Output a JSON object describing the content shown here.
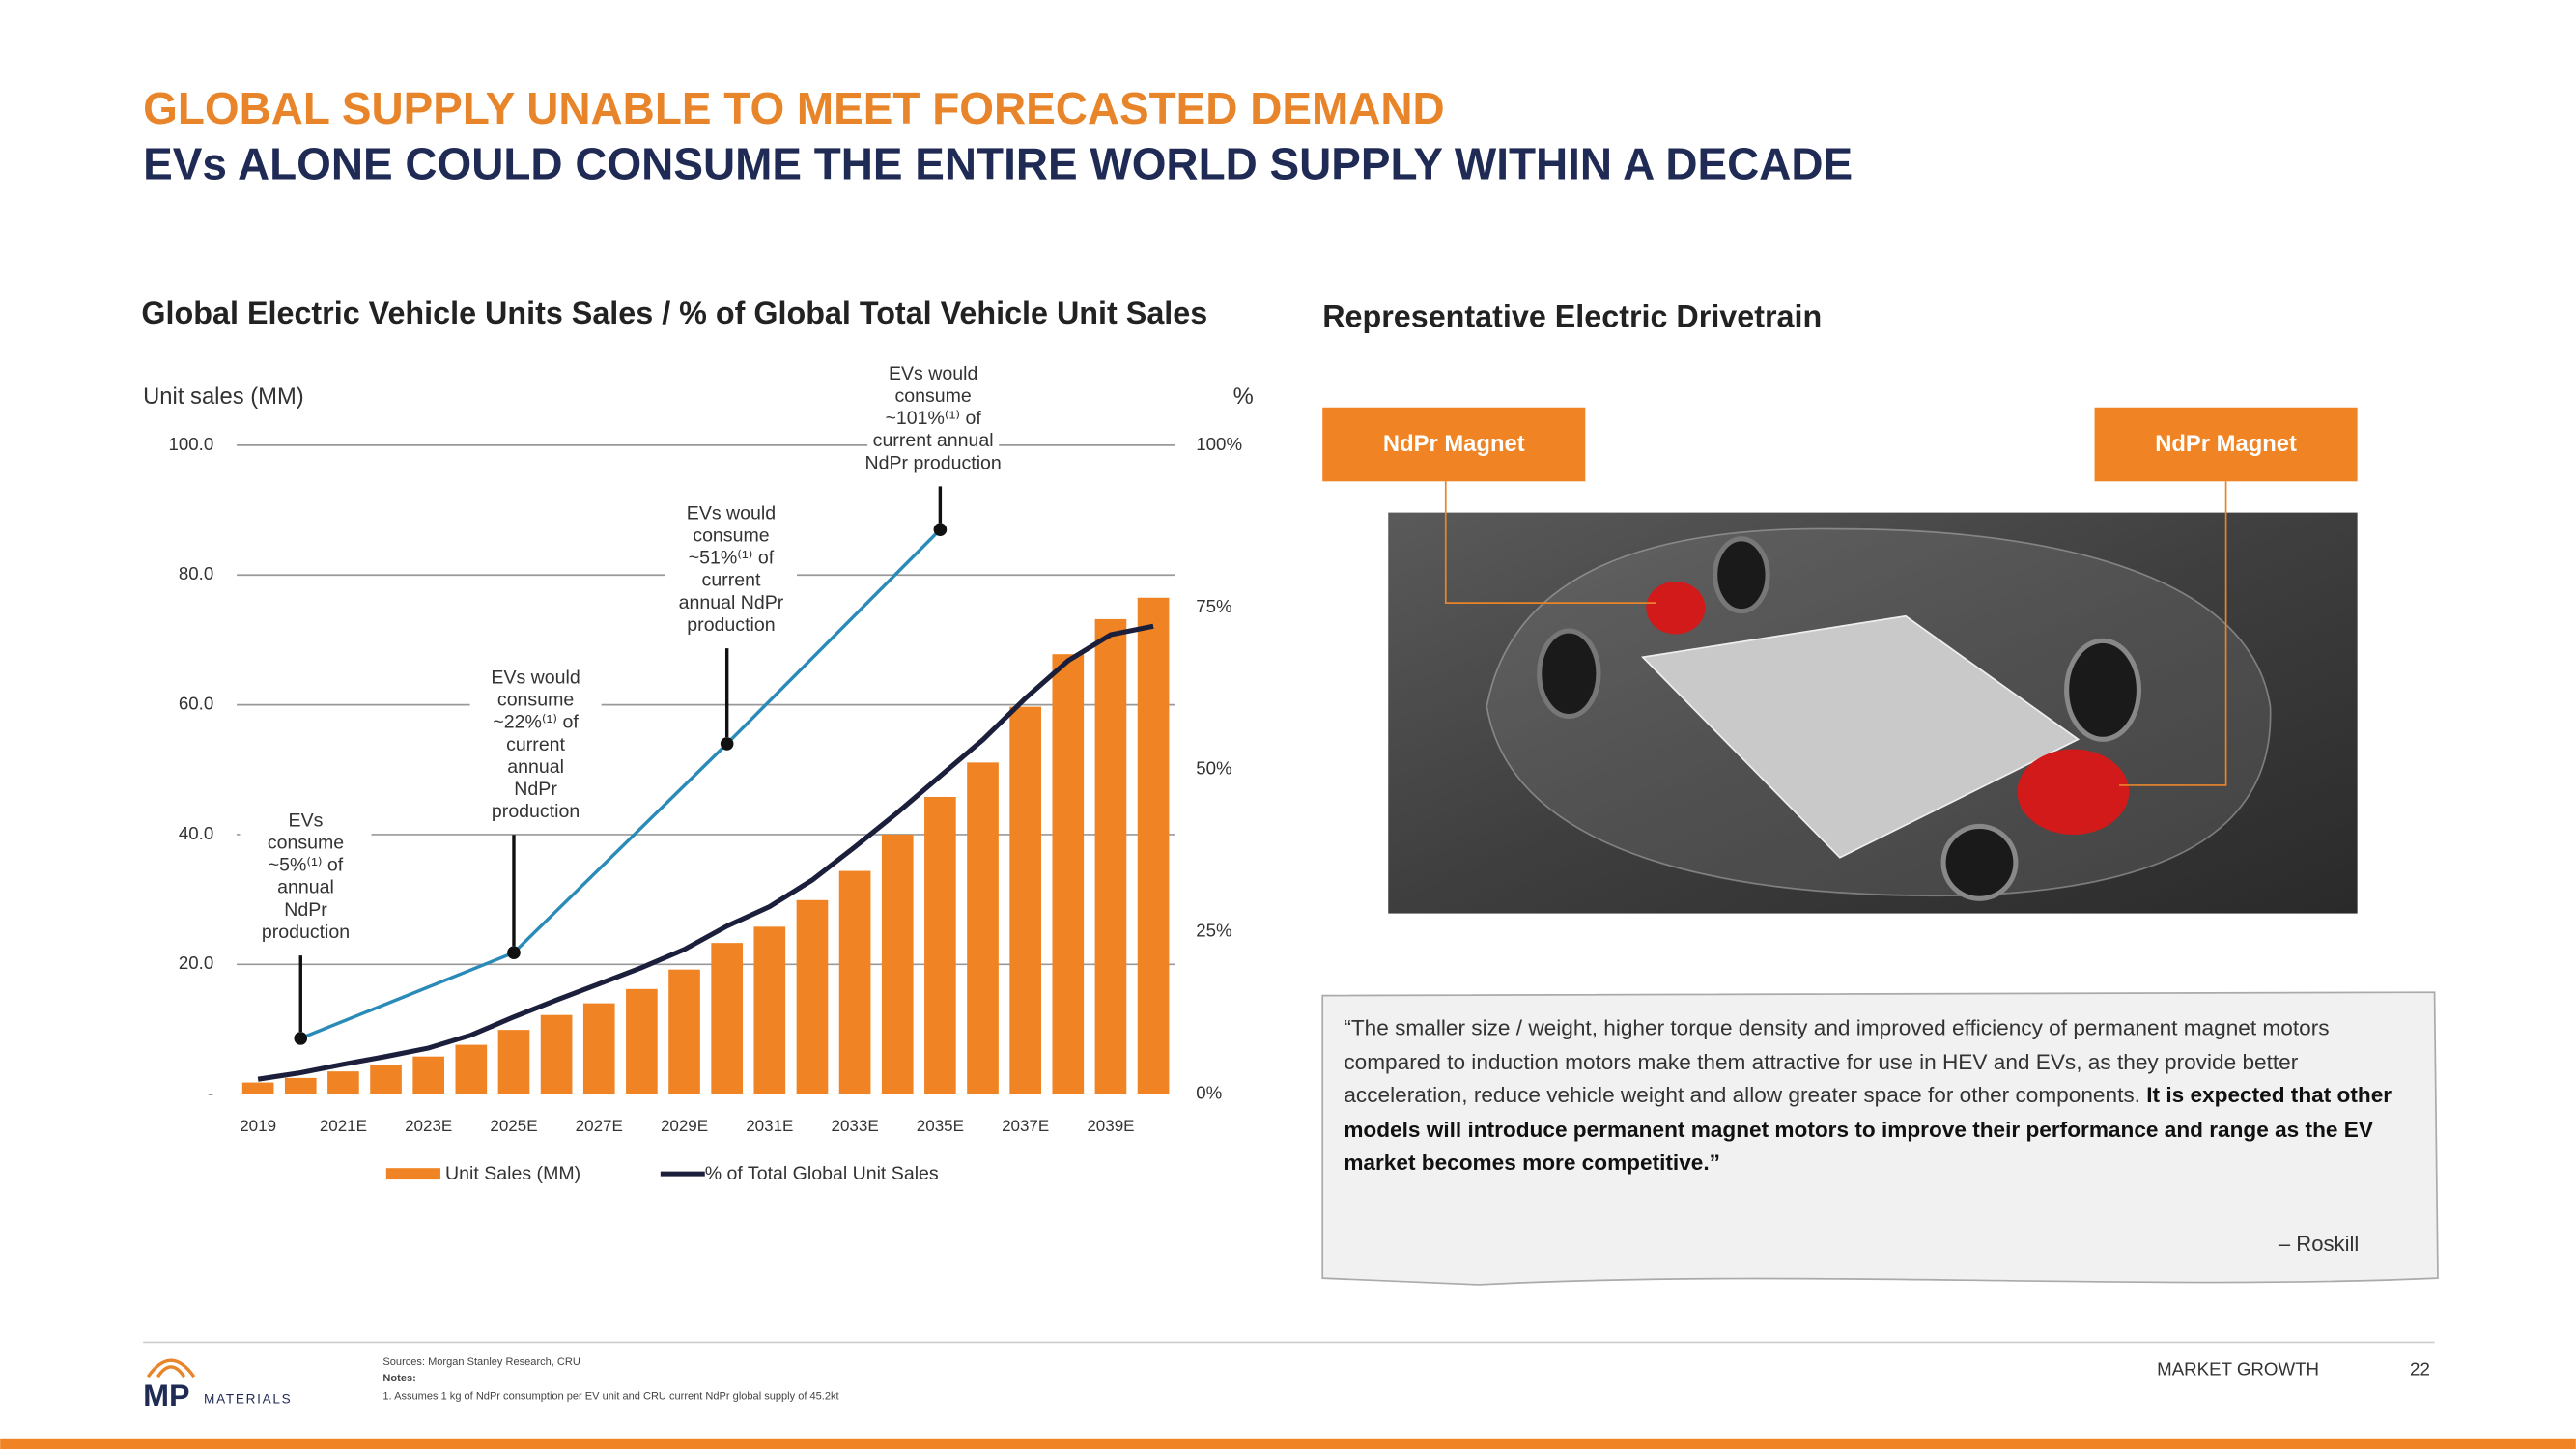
{
  "header": {
    "title": "GLOBAL SUPPLY UNABLE TO MEET FORECASTED DEMAND",
    "subtitle": "EVs ALONE COULD CONSUME THE ENTIRE WORLD SUPPLY WITHIN A DECADE"
  },
  "chart_data": {
    "type": "bar",
    "title": "Global Electric Vehicle Units Sales / % of Global Total Vehicle Unit Sales",
    "y_label": "Unit sales (MM)",
    "y2_label": "%",
    "categories": [
      "2019",
      null,
      "2021E",
      null,
      "2023E",
      null,
      "2025E",
      null,
      "2027E",
      null,
      "2029E",
      null,
      "2031E",
      null,
      "2033E",
      null,
      "2035E",
      null,
      "2037E",
      null,
      "2039E",
      null
    ],
    "series": [
      {
        "name": "Unit Sales (MM)",
        "color": "#f08424",
        "values": [
          1.8,
          2.5,
          3.5,
          4.5,
          5.8,
          7.6,
          9.9,
          12.2,
          14,
          16.2,
          19.2,
          23.3,
          25.8,
          29.9,
          34.4,
          40,
          45.8,
          51.1,
          59.7,
          67.8,
          73.2,
          76.5
        ]
      },
      {
        "name": "% of Total Global Unit Sales",
        "color": "#1b1f3b",
        "axis": "y2",
        "values": [
          2.3,
          3.3,
          4.6,
          5.8,
          7.1,
          9.1,
          11.9,
          14.5,
          17,
          19.5,
          22.3,
          25.9,
          28.9,
          33,
          38.1,
          43.4,
          49,
          54.6,
          61,
          66.8,
          70.8,
          72.1
        ]
      },
      {
        "color": "#2a8ab8",
        "values": [
          null,
          8.6,
          null,
          null,
          null,
          null,
          21.8,
          null,
          null,
          null,
          null,
          54,
          null,
          null,
          null,
          null,
          87,
          null,
          null,
          null,
          null,
          null
        ]
      }
    ],
    "annotations": [
      {
        "lines": [
          "EVs",
          "consume",
          "~5%⁽¹⁾ of",
          "annual",
          "NdPr",
          "production"
        ]
      },
      {
        "lines": [
          "EVs would",
          "consume",
          "~22%⁽¹⁾ of",
          "current",
          "annual",
          "NdPr",
          "production"
        ]
      },
      {
        "lines": [
          "EVs would",
          "consume",
          "~51%⁽¹⁾ of",
          "current",
          "annual NdPr",
          "production"
        ]
      },
      {
        "lines": [
          "EVs would",
          "consume",
          "~101%⁽¹⁾ of",
          "current annual",
          "NdPr production"
        ]
      }
    ],
    "ylim": [
      0,
      100
    ],
    "yticks": [
      {
        "value": 0,
        "label": "-"
      },
      {
        "value": 20,
        "label": "20.0"
      },
      {
        "value": 40,
        "label": "40.0"
      },
      {
        "value": 60,
        "label": "60.0"
      },
      {
        "value": 80,
        "label": "80.0"
      },
      {
        "value": 100,
        "label": "100.0"
      }
    ],
    "y2lim": [
      0,
      100
    ],
    "y2ticks": [
      {
        "value": 0,
        "label": "0%"
      },
      {
        "value": 25,
        "label": "25%"
      },
      {
        "value": 50,
        "label": "50%"
      },
      {
        "value": 75,
        "label": "75%"
      },
      {
        "value": 100,
        "label": "100%"
      }
    ],
    "grid": true,
    "legend": "bottom"
  },
  "diagram": {
    "title": "Representative Electric Drivetrain",
    "labels": [
      "NdPr Magnet",
      "NdPr Magnet"
    ]
  },
  "quote": {
    "text": "“The smaller size / weight, higher torque density and improved efficiency of permanent magnet motors compared to induction motors make them attractive for use in HEV and EVs, as they provide better acceleration, reduce vehicle weight and allow greater space for other components. ",
    "emphasis": "It is expected that other models will introduce permanent magnet motors to improve their performance and range as the EV market becomes more competitive.”",
    "author": "– Roskill"
  },
  "footer": {
    "logo": "MP",
    "logo_sub": "MATERIALS",
    "sources": "Sources: Morgan Stanley Research, CRU",
    "notes_title": "Notes:",
    "note": "1. Assumes 1 kg of NdPr consumption per EV unit and CRU current NdPr global supply of 45.2kt",
    "section": "MARKET GROWTH",
    "page": "22"
  }
}
